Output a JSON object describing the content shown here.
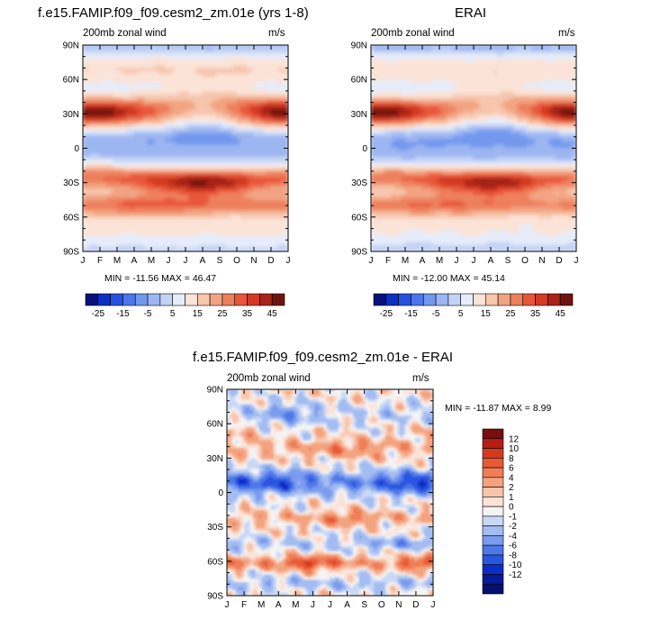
{
  "panels": [
    {
      "title": "f.e15.FAMIP.f09_f09.cesm2_zm.01e (yrs 1-8)",
      "left_label": "200mb zonal wind",
      "right_label": "m/s",
      "minmax": "MIN = -11.56 MAX =  46.47"
    },
    {
      "title": "ERAI",
      "left_label": "200mb zonal wind",
      "right_label": "m/s",
      "minmax": "MIN = -12.00 MAX =  45.14"
    },
    {
      "title": "f.e15.FAMIP.f09_f09.cesm2_zm.01e - ERAI",
      "left_label": "200mb zonal wind",
      "right_label": "m/s",
      "minmax": "MIN = -11.87 MAX =   8.99"
    }
  ],
  "chart_data": [
    {
      "type": "heatmap",
      "title": "f.e15.FAMIP.f09_f09.cesm2_zm.01e (yrs 1-8)",
      "x_ticks": [
        "J",
        "F",
        "M",
        "A",
        "M",
        "J",
        "J",
        "A",
        "S",
        "O",
        "N",
        "D",
        "J"
      ],
      "y_ticks": [
        "90N",
        "60N",
        "30N",
        "0",
        "30S",
        "60S",
        "90S"
      ],
      "y_values": [
        90,
        60,
        30,
        0,
        -30,
        -60,
        -90
      ],
      "colorbar_labels": [
        "-25",
        "-15",
        "-5",
        "5",
        "15",
        "25",
        "35",
        "45"
      ],
      "colorbar_colors": [
        "#08117a",
        "#0c2fc4",
        "#2552e0",
        "#4a77ea",
        "#7399ee",
        "#9cb6f2",
        "#c3d3f6",
        "#e6ecf9",
        "#fbe3d8",
        "#f7c6ad",
        "#f2a482",
        "#ee805d",
        "#e8563a",
        "#d23a22",
        "#a82418",
        "#6f1411"
      ],
      "features": {
        "nh_jet": {
          "lat": 31,
          "peak": 46.47,
          "peak_months": [
            "J",
            "D"
          ]
        },
        "sh_jet": {
          "lat": -30,
          "peak": 44,
          "peak_months": [
            "J",
            "A"
          ]
        },
        "tropical_easterlies": {
          "lat": 6,
          "min": -11.56,
          "min_months": [
            "J",
            "A"
          ]
        }
      }
    },
    {
      "type": "heatmap",
      "title": "ERAI",
      "x_ticks": [
        "J",
        "F",
        "M",
        "A",
        "M",
        "J",
        "J",
        "A",
        "S",
        "O",
        "N",
        "D",
        "J"
      ],
      "y_ticks": [
        "90N",
        "60N",
        "30N",
        "0",
        "30S",
        "60S",
        "90S"
      ],
      "y_values": [
        90,
        60,
        30,
        0,
        -30,
        -60,
        -90
      ],
      "colorbar_labels": [
        "-25",
        "-15",
        "-5",
        "5",
        "15",
        "25",
        "35",
        "45"
      ],
      "colorbar_colors": [
        "#08117a",
        "#0c2fc4",
        "#2552e0",
        "#4a77ea",
        "#7399ee",
        "#9cb6f2",
        "#c3d3f6",
        "#e6ecf9",
        "#fbe3d8",
        "#f7c6ad",
        "#f2a482",
        "#ee805d",
        "#e8563a",
        "#d23a22",
        "#a82418",
        "#6f1411"
      ],
      "features": {
        "nh_jet": {
          "lat": 31,
          "peak": 45.14,
          "peak_months": [
            "J",
            "D"
          ]
        },
        "sh_jet": {
          "lat": -30,
          "peak": 42,
          "peak_months": [
            "J",
            "A"
          ]
        },
        "tropical_easterlies": {
          "lat": 5,
          "min": -12.0,
          "min_months": [
            "J",
            "A"
          ]
        }
      }
    },
    {
      "type": "heatmap",
      "title": "f.e15.FAMIP.f09_f09.cesm2_zm.01e - ERAI",
      "x_ticks": [
        "J",
        "F",
        "M",
        "A",
        "M",
        "J",
        "J",
        "A",
        "S",
        "O",
        "N",
        "D",
        "J"
      ],
      "y_ticks": [
        "90N",
        "60N",
        "30N",
        "0",
        "30S",
        "60S",
        "90S"
      ],
      "y_values": [
        90,
        60,
        30,
        0,
        -30,
        -60,
        -90
      ],
      "colorbar_labels": [
        "12",
        "10",
        "8",
        "6",
        "4",
        "2",
        "1",
        "0",
        "-1",
        "-2",
        "-4",
        "-6",
        "-8",
        "-10",
        "-12"
      ],
      "colorbar_colors": [
        "#7a0d0d",
        "#b51d14",
        "#d53a1e",
        "#e85a35",
        "#ef7d55",
        "#f4a37f",
        "#f8c6ad",
        "#fbe3d8",
        "#f4f4f4",
        "#c9d8f6",
        "#a3bcf2",
        "#7a9cee",
        "#4e78e8",
        "#2a55e0",
        "#0c2dc8",
        "#061a9a",
        "#050f6e"
      ],
      "features": {
        "tropical_anomaly_min": {
          "lat": 8,
          "value": -11.87,
          "months": [
            "N",
            "D"
          ]
        },
        "sh_midlat_anomaly_max": {
          "lat": -62,
          "value": 8.99,
          "months": [
            "M",
            "J"
          ]
        }
      }
    }
  ]
}
